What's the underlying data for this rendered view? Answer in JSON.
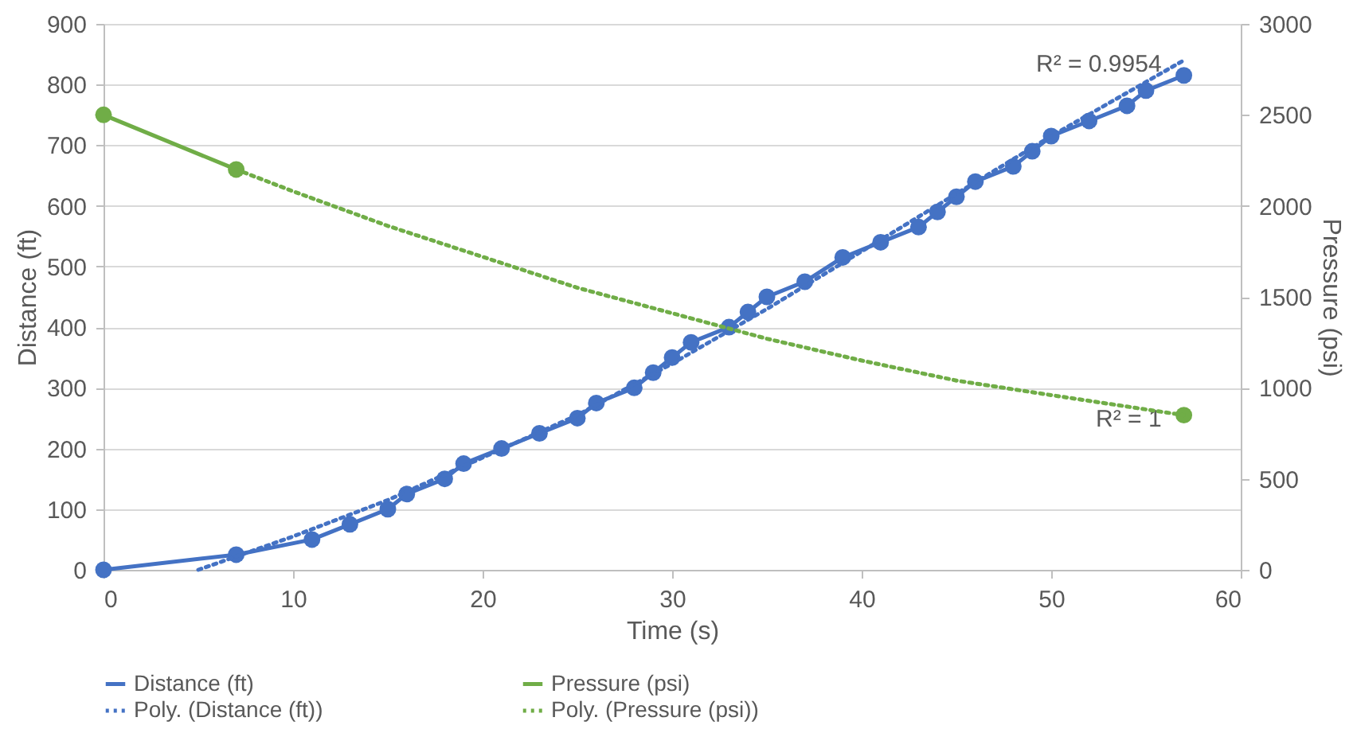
{
  "chart_data": {
    "type": "line",
    "xlabel": "Time (s)",
    "ylabel": "Distance (ft)",
    "y2label": "Pressure (psi)",
    "xlim": [
      0,
      60
    ],
    "xticks": [
      0,
      10,
      20,
      30,
      40,
      50,
      60
    ],
    "ylim": [
      0,
      900
    ],
    "yticks": [
      0,
      100,
      200,
      300,
      400,
      500,
      600,
      700,
      800,
      900
    ],
    "y2lim": [
      0,
      3000
    ],
    "y2ticks": [
      0,
      500,
      1000,
      1500,
      2000,
      2500,
      3000
    ],
    "grid": "y",
    "legend": "bottom",
    "annotations": [
      {
        "text": "R² = 0.9954",
        "x": 57,
        "y": 840
      },
      {
        "text": "R² = 1",
        "x": 57,
        "y": 255
      }
    ],
    "series": [
      {
        "name": "Distance (ft)",
        "color": "#4472c4",
        "marker": "circle",
        "line_style": "solid",
        "x": [
          0,
          7,
          11,
          13,
          15,
          16,
          18,
          19,
          21,
          23,
          25,
          26,
          28,
          29,
          30,
          31,
          33,
          34,
          35,
          37,
          39,
          41,
          43,
          44,
          45,
          46,
          48,
          49,
          50,
          52,
          54,
          55,
          57
        ],
        "values": [
          0,
          25,
          50,
          75,
          100,
          125,
          150,
          175,
          200,
          225,
          250,
          275,
          300,
          325,
          350,
          375,
          400,
          425,
          450,
          475,
          515,
          540,
          565,
          590,
          615,
          640,
          665,
          690,
          715,
          740,
          765,
          790,
          815
        ]
      },
      {
        "name": "Pressure (psi)",
        "color": "#70ad47",
        "marker": "circle",
        "line_style": "solid",
        "axis": "y2",
        "x": [
          0,
          7,
          30,
          57
        ],
        "values": [
          2500,
          2200,
          null,
          850
        ]
      },
      {
        "name": "Poly. (Distance (ft))",
        "color": "#4472c4",
        "marker": "none",
        "line_style": "dotted",
        "x": [
          5,
          10,
          15,
          20,
          25,
          30,
          35,
          40,
          45,
          50,
          57
        ],
        "values": [
          0,
          55,
          115,
          185,
          255,
          340,
          430,
          525,
          620,
          715,
          840
        ]
      },
      {
        "name": "Poly. (Pressure (psi))",
        "color": "#70ad47",
        "marker": "none",
        "line_style": "dotted",
        "axis": "y2",
        "x": [
          7,
          10,
          15,
          20,
          25,
          30,
          35,
          40,
          45,
          50,
          57
        ],
        "values": [
          2200,
          2080,
          1890,
          1720,
          1550,
          1410,
          1270,
          1150,
          1040,
          960,
          850
        ]
      }
    ]
  }
}
